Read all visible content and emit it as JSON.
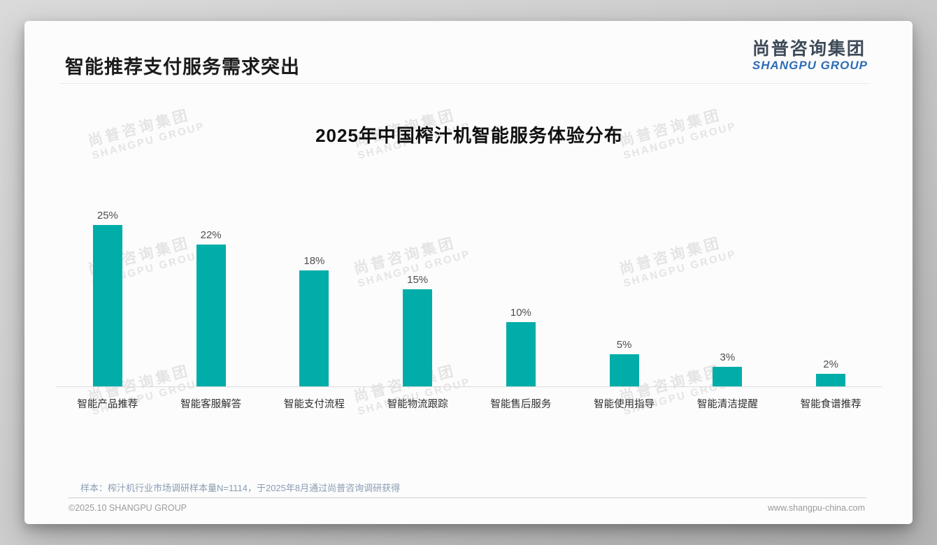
{
  "page": {
    "title": "智能推荐支付服务需求突出",
    "logo": {
      "cn": "尚普咨询集团",
      "en": "SHANGPU GROUP",
      "cn_color": "#3e4a58",
      "en_color": "#2e6cb5"
    },
    "watermark": {
      "cn": "尚普咨询集团",
      "en": "SHANGPU GROUP"
    },
    "note": "样本：榨汁机行业市场调研样本量N=1114，于2025年8月通过尚普咨询调研获得",
    "footer": {
      "left": "©2025.10 SHANGPU GROUP",
      "right": "www.shangpu-china.com"
    }
  },
  "chart_data": {
    "type": "bar",
    "title": "2025年中国榨汁机智能服务体验分布",
    "categories": [
      "智能产品推荐",
      "智能客服解答",
      "智能支付流程",
      "智能物流跟踪",
      "智能售后服务",
      "智能使用指导",
      "智能清洁提醒",
      "智能食谱推荐"
    ],
    "values": [
      25,
      22,
      18,
      15,
      10,
      5,
      3,
      2
    ],
    "unit": "%",
    "value_labels": true,
    "bar_color": "#00ADA8",
    "xlabel": "",
    "ylabel": "",
    "ylim": [
      0,
      30
    ],
    "grid": false,
    "legend": false
  }
}
